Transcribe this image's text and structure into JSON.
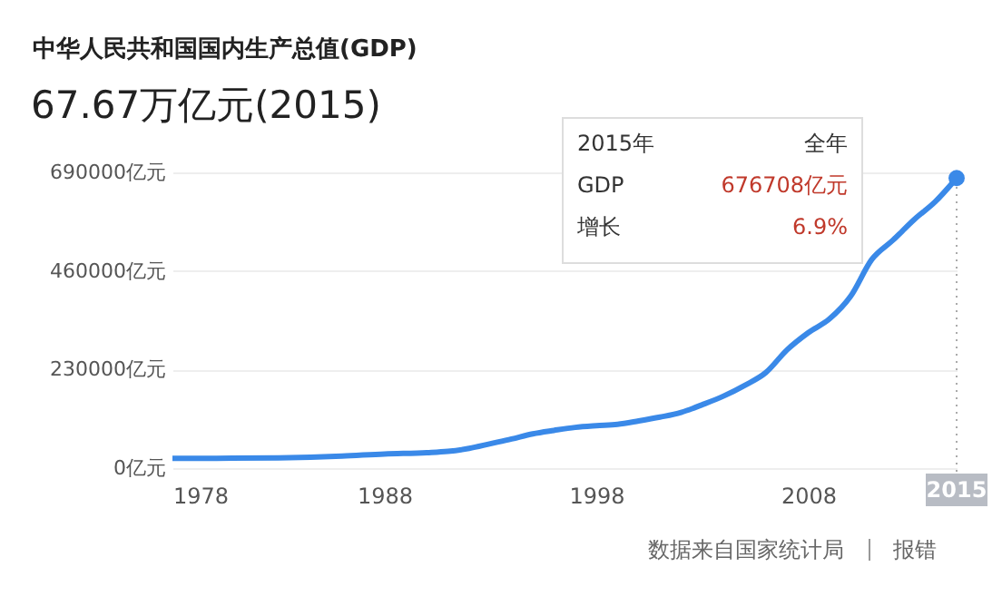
{
  "chart_data": {
    "type": "line",
    "title": "中华人民共和国国内生产总值(GDP)",
    "subtitle": "67.67万亿元(2015)",
    "x": [
      1978,
      1980,
      1983,
      1986,
      1988,
      1990,
      1991,
      1992,
      1993,
      1994,
      1995,
      1996,
      1997,
      1998,
      1999,
      2000,
      2001,
      2002,
      2003,
      2004,
      2005,
      2006,
      2007,
      2008,
      2009,
      2010,
      2011,
      2012,
      2013,
      2014,
      2015
    ],
    "series": [
      {
        "color": "#3a89e8",
        "values": [
          23000,
          23000,
          24000,
          28000,
          33000,
          36000,
          39000,
          46000,
          57000,
          68000,
          80000,
          88000,
          95000,
          99000,
          102000,
          110000,
          119000,
          130000,
          148000,
          168000,
          193000,
          223000,
          276000,
          316000,
          348000,
          401000,
          487000,
          532000,
          580000,
          622000,
          676708
        ]
      }
    ],
    "xlim": [
      1978,
      2015
    ],
    "xticks": [
      1978,
      1988,
      1998,
      2008
    ],
    "ylim": [
      0,
      690000
    ],
    "yticks": [
      {
        "value": 0,
        "label": "0亿元"
      },
      {
        "value": 230000,
        "label": "230000亿元"
      },
      {
        "value": 460000,
        "label": "460000亿元"
      },
      {
        "value": 690000,
        "label": "690000亿元"
      }
    ],
    "grid": "y",
    "marker": "none",
    "line_style": "solid",
    "ref_lines": [
      {
        "axis": "x",
        "value": 2015,
        "line_style": "dotted",
        "color": "#aaaaaa",
        "label": "2015"
      }
    ],
    "annotations": [
      "2015年",
      "全年",
      "GDP",
      "676708亿元",
      "增长",
      "6.9%",
      "数据来自国家统计局",
      "报错"
    ]
  }
}
